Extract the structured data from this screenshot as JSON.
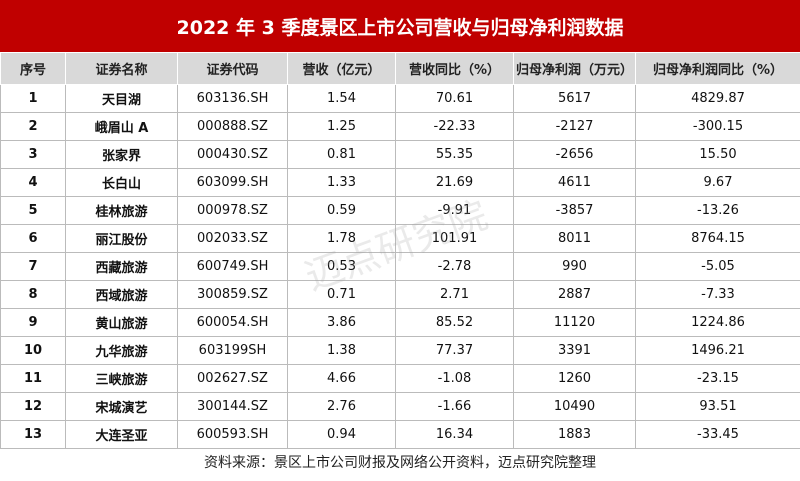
{
  "header": {
    "title": "2022 年 3 季度景区上市公司营收与归母净利润数据"
  },
  "table": {
    "columns": [
      "序号",
      "证券名称",
      "证券代码",
      "营收（亿元）",
      "营收同比（%）",
      "归母净利润（万元）",
      "归母净利润同比（%）"
    ],
    "rows": [
      [
        "1",
        "天目湖",
        "603136.SH",
        "1.54",
        "70.61",
        "5617",
        "4829.87"
      ],
      [
        "2",
        "峨眉山 A",
        "000888.SZ",
        "1.25",
        "-22.33",
        "-2127",
        "-300.15"
      ],
      [
        "3",
        "张家界",
        "000430.SZ",
        "0.81",
        "55.35",
        "-2656",
        "15.50"
      ],
      [
        "4",
        "长白山",
        "603099.SH",
        "1.33",
        "21.69",
        "4611",
        "9.67"
      ],
      [
        "5",
        "桂林旅游",
        "000978.SZ",
        "0.59",
        "-9.91",
        "-3857",
        "-13.26"
      ],
      [
        "6",
        "丽江股份",
        "002033.SZ",
        "1.78",
        "101.91",
        "8011",
        "8764.15"
      ],
      [
        "7",
        "西藏旅游",
        "600749.SH",
        "0.53",
        "-2.78",
        "990",
        "-5.05"
      ],
      [
        "8",
        "西域旅游",
        "300859.SZ",
        "0.71",
        "2.71",
        "2887",
        "-7.33"
      ],
      [
        "9",
        "黄山旅游",
        "600054.SH",
        "3.86",
        "85.52",
        "11120",
        "1224.86"
      ],
      [
        "10",
        "九华旅游",
        "603199SH",
        "1.38",
        "77.37",
        "3391",
        "1496.21"
      ],
      [
        "11",
        "三峡旅游",
        "002627.SZ",
        "4.66",
        "-1.08",
        "1260",
        "-23.15"
      ],
      [
        "12",
        "宋城演艺",
        "300144.SZ",
        "2.76",
        "-1.66",
        "10490",
        "93.51"
      ],
      [
        "13",
        "大连圣亚",
        "600593.SH",
        "0.94",
        "16.34",
        "1883",
        "-33.45"
      ]
    ]
  },
  "watermark": "迈点研究院",
  "footer": {
    "source": "资料来源：景区上市公司财报及网络公开资料，迈点研究院整理"
  }
}
